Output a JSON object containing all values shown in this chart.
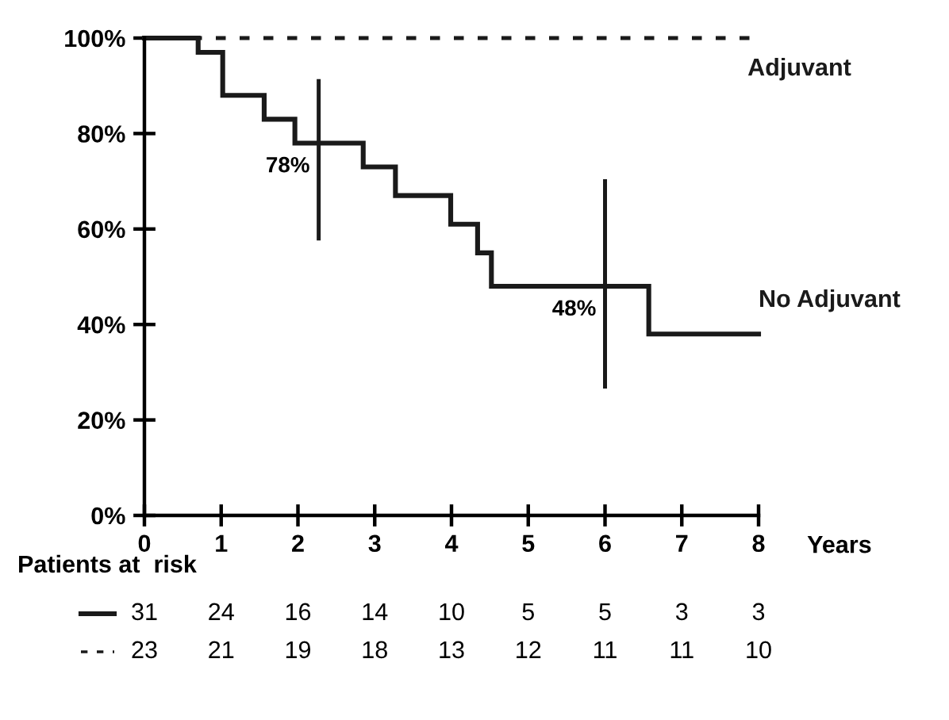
{
  "chart_data": {
    "type": "step",
    "series": [
      {
        "name": "Adjuvant",
        "type": "line",
        "color": "#1a1a1a",
        "line_style": "dashed",
        "x": [
          0,
          8
        ],
        "values": [
          100,
          100
        ]
      },
      {
        "name": "No Adjuvant",
        "color": "#1a1a1a",
        "line_style": "solid",
        "x": [
          0,
          0.7,
          1.02,
          1.56,
          1.96,
          2.85,
          3.27,
          3.99,
          4.34,
          4.52,
          6.57,
          8
        ],
        "values": [
          100,
          97,
          88,
          83,
          78,
          73,
          67,
          61,
          55,
          48,
          38,
          38
        ]
      },
      {
        "type": "line",
        "color": "#1a1a1a",
        "line_style": "solid",
        "x": [
          2.27,
          2.27
        ],
        "values": [
          58,
          91
        ]
      },
      {
        "type": "line",
        "color": "#1a1a1a",
        "line_style": "solid",
        "x": [
          6.0,
          6.0
        ],
        "values": [
          27,
          70
        ]
      }
    ],
    "xlabel": "Years",
    "xlim": [
      0,
      8
    ],
    "xticks": [
      0,
      1,
      2,
      3,
      4,
      5,
      6,
      7,
      8
    ],
    "ylim": [
      0,
      100
    ],
    "yticks": [
      {
        "value": 0,
        "label": "0%"
      },
      {
        "value": 20,
        "label": "20%"
      },
      {
        "value": 40,
        "label": "40%"
      },
      {
        "value": 60,
        "label": "60%"
      },
      {
        "value": 80,
        "label": "80%"
      },
      {
        "value": 100,
        "label": "100%"
      }
    ],
    "grid": false,
    "legend": false,
    "marker": "none",
    "annotations": [
      {
        "text": "78%",
        "x": 2.27,
        "y": 78
      },
      {
        "text": "48%",
        "x": 6.0,
        "y": 48
      },
      "Patients at  risk",
      "31 24 16 14 10 5 5 3 3",
      "23 21 19 18 13 12 11 11 10"
    ]
  }
}
